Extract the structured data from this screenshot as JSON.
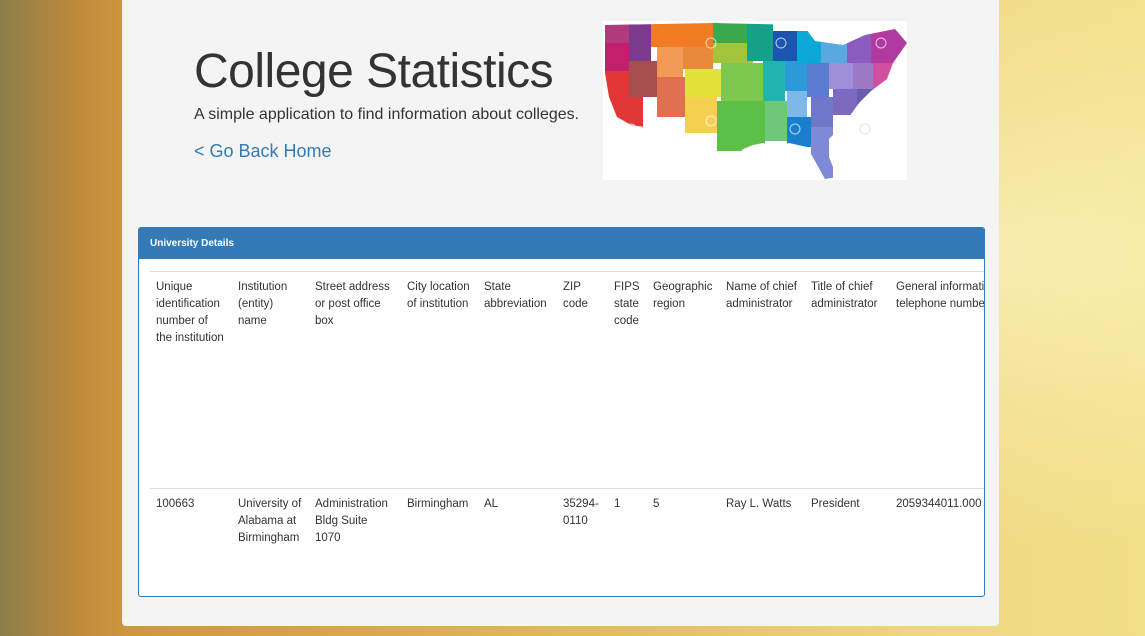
{
  "hero": {
    "title": "College Statistics",
    "subtitle": "A simple application to find information about colleges.",
    "back_link": "< Go Back Home"
  },
  "details": {
    "heading": "University Details",
    "columns": [
      "Unique identification number of the institution",
      "Institution (entity) name",
      "Street address or post office box",
      "City location of institution",
      "State abbreviation",
      "ZIP code",
      "FIPS state code",
      "Geographic region",
      "Name of chief administrator",
      "Title of chief administrator",
      "General information telephone number"
    ],
    "rows": [
      [
        "100663",
        "University of Alabama at Birmingham",
        "Administration Bldg Suite 1070",
        "Birmingham",
        "AL",
        "35294-0110",
        "1",
        "5",
        "Ray L. Watts",
        "President",
        "2059344011.000"
      ]
    ]
  }
}
